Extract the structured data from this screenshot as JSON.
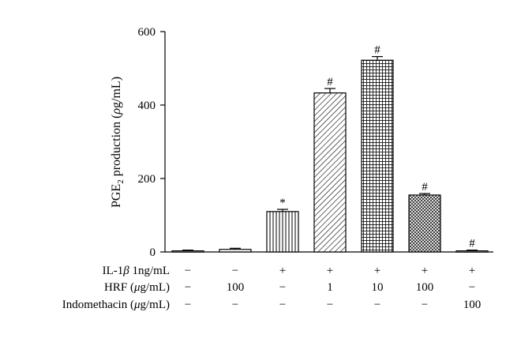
{
  "chart_data": {
    "type": "bar",
    "ylabel_parts": [
      "PGE",
      "2",
      " production (",
      "ρ",
      "g/mL)"
    ],
    "ylim": [
      0,
      600
    ],
    "yticks": [
      "0",
      "200",
      "400",
      "600"
    ],
    "ytick_values": [
      0,
      200,
      400,
      600
    ],
    "bars": [
      {
        "value": 3,
        "error": 2,
        "sig": "",
        "pattern": "none"
      },
      {
        "value": 7,
        "error": 3,
        "sig": "",
        "pattern": "none"
      },
      {
        "value": 110,
        "error": 6,
        "sig": "*",
        "pattern": "vertical"
      },
      {
        "value": 433,
        "error": 12,
        "sig": "#",
        "pattern": "diagonal"
      },
      {
        "value": 522,
        "error": 10,
        "sig": "#",
        "pattern": "grid"
      },
      {
        "value": 155,
        "error": 4,
        "sig": "#",
        "pattern": "crosshatch"
      },
      {
        "value": 3,
        "error": 2,
        "sig": "#",
        "pattern": "none"
      }
    ],
    "condition_rows": [
      {
        "label_parts": [
          "IL-1",
          "β",
          " 1ng/mL"
        ],
        "cells": [
          "−",
          "−",
          "+",
          "+",
          "+",
          "+",
          "+"
        ]
      },
      {
        "label_parts": [
          "HRF (",
          "μ",
          "g/mL)"
        ],
        "cells": [
          "−",
          "100",
          "−",
          "1",
          "10",
          "100",
          "−"
        ]
      },
      {
        "label_parts": [
          "Indomethacin (",
          "μ",
          "g/mL)"
        ],
        "cells": [
          "−",
          "−",
          "−",
          "−",
          "−",
          "−",
          "100"
        ]
      }
    ]
  }
}
